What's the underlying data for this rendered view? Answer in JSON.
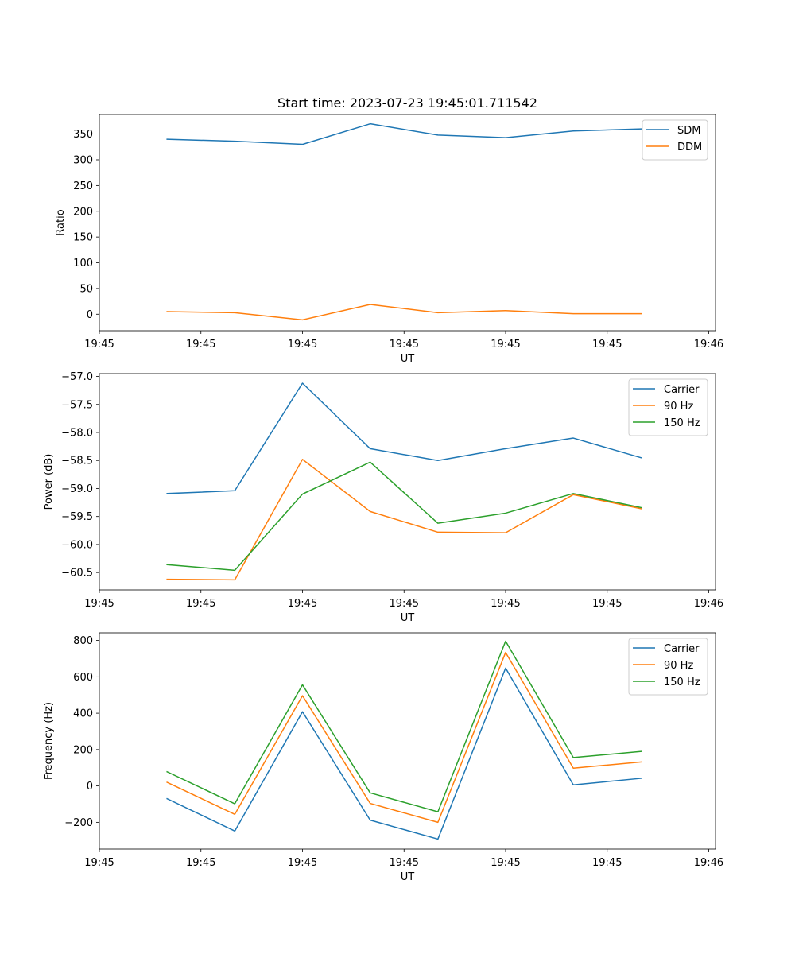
{
  "chart_data": [
    {
      "type": "line",
      "title": "Start time: 2023-07-23 19:45:01.711542",
      "xlabel": "UT",
      "ylabel": "Ratio",
      "xlim": [
        0,
        9.1
      ],
      "ylim": [
        -32,
        388
      ],
      "x": [
        1,
        2,
        3,
        4,
        5,
        6,
        7,
        8
      ],
      "xticks": [
        0,
        1.5,
        3,
        4.5,
        6,
        7.5,
        9
      ],
      "xticklabels": [
        "19:45",
        "19:45",
        "19:45",
        "19:45",
        "19:45",
        "19:45",
        "19:46"
      ],
      "yticks": [
        0,
        50,
        100,
        150,
        200,
        250,
        300,
        350
      ],
      "yticklabels": [
        "0",
        "50",
        "100",
        "150",
        "200",
        "250",
        "300",
        "350"
      ],
      "legend_loc": "upper right",
      "series": [
        {
          "name": "SDM",
          "color": "#1f77b4",
          "values": [
            340,
            336,
            330,
            370,
            348,
            343,
            356,
            360
          ]
        },
        {
          "name": "DDM",
          "color": "#ff7f0e",
          "values": [
            5,
            3,
            -11,
            19,
            3,
            7,
            1,
            1
          ]
        }
      ]
    },
    {
      "type": "line",
      "title": "",
      "xlabel": "UT",
      "ylabel": "Power (dB)",
      "xlim": [
        0,
        9.1
      ],
      "ylim": [
        -60.81,
        -56.95
      ],
      "x": [
        1,
        2,
        3,
        4,
        5,
        6,
        7,
        8
      ],
      "xticks": [
        0,
        1.5,
        3,
        4.5,
        6,
        7.5,
        9
      ],
      "xticklabels": [
        "19:45",
        "19:45",
        "19:45",
        "19:45",
        "19:45",
        "19:45",
        "19:46"
      ],
      "yticks": [
        -60.5,
        -60.0,
        -59.5,
        -59.0,
        -58.5,
        -58.0,
        -57.5,
        -57.0
      ],
      "yticklabels": [
        "−60.5",
        "−60.0",
        "−59.5",
        "−59.0",
        "−58.5",
        "−58.0",
        "−57.5",
        "−57.0"
      ],
      "legend_loc": "upper right",
      "series": [
        {
          "name": "Carrier",
          "color": "#1f77b4",
          "values": [
            -59.09,
            -59.04,
            -57.12,
            -58.29,
            -58.5,
            -58.29,
            -58.1,
            -58.45
          ]
        },
        {
          "name": "90 Hz",
          "color": "#ff7f0e",
          "values": [
            -60.62,
            -60.63,
            -58.48,
            -59.41,
            -59.78,
            -59.79,
            -59.11,
            -59.36
          ]
        },
        {
          "name": "150 Hz",
          "color": "#2ca02c",
          "values": [
            -60.36,
            -60.46,
            -59.1,
            -58.53,
            -59.62,
            -59.44,
            -59.09,
            -59.34
          ]
        }
      ]
    },
    {
      "type": "line",
      "title": "",
      "xlabel": "UT",
      "ylabel": "Frequency (Hz)",
      "xlim": [
        0,
        9.1
      ],
      "ylim": [
        -347,
        842
      ],
      "x": [
        1,
        2,
        3,
        4,
        5,
        6,
        7,
        8
      ],
      "xticks": [
        0,
        1.5,
        3,
        4.5,
        6,
        7.5,
        9
      ],
      "xticklabels": [
        "19:45",
        "19:45",
        "19:45",
        "19:45",
        "19:45",
        "19:45",
        "19:46"
      ],
      "yticks": [
        -200,
        0,
        200,
        400,
        600,
        800
      ],
      "yticklabels": [
        "−200",
        "0",
        "200",
        "400",
        "600",
        "800"
      ],
      "legend_loc": "upper right",
      "series": [
        {
          "name": "Carrier",
          "color": "#1f77b4",
          "values": [
            -70,
            -248,
            408,
            -188,
            -292,
            648,
            6,
            42
          ]
        },
        {
          "name": "90 Hz",
          "color": "#ff7f0e",
          "values": [
            20,
            -156,
            496,
            -96,
            -200,
            734,
            98,
            132
          ]
        },
        {
          "name": "150 Hz",
          "color": "#2ca02c",
          "values": [
            78,
            -98,
            556,
            -38,
            -142,
            796,
            156,
            190
          ]
        }
      ]
    }
  ]
}
